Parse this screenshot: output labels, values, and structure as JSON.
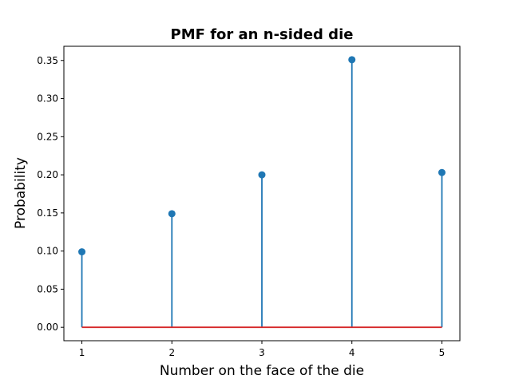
{
  "chart_data": {
    "type": "stem",
    "title": "PMF for an n-sided die",
    "xlabel": "Number on the face of the die",
    "ylabel": "Probability",
    "x": [
      1,
      2,
      3,
      4,
      5
    ],
    "values": [
      0.099,
      0.149,
      0.2,
      0.351,
      0.203
    ],
    "x_ticks": [
      "1",
      "2",
      "3",
      "4",
      "5"
    ],
    "y_ticks": [
      "0.00",
      "0.05",
      "0.10",
      "0.15",
      "0.20",
      "0.25",
      "0.30",
      "0.35"
    ],
    "xlim": [
      0.8,
      5.2
    ],
    "ylim": [
      -0.0176,
      0.3686
    ],
    "grid": false,
    "colors": {
      "stem": "#1f77b4",
      "baseline": "#d62728",
      "axes": "#000000"
    }
  }
}
